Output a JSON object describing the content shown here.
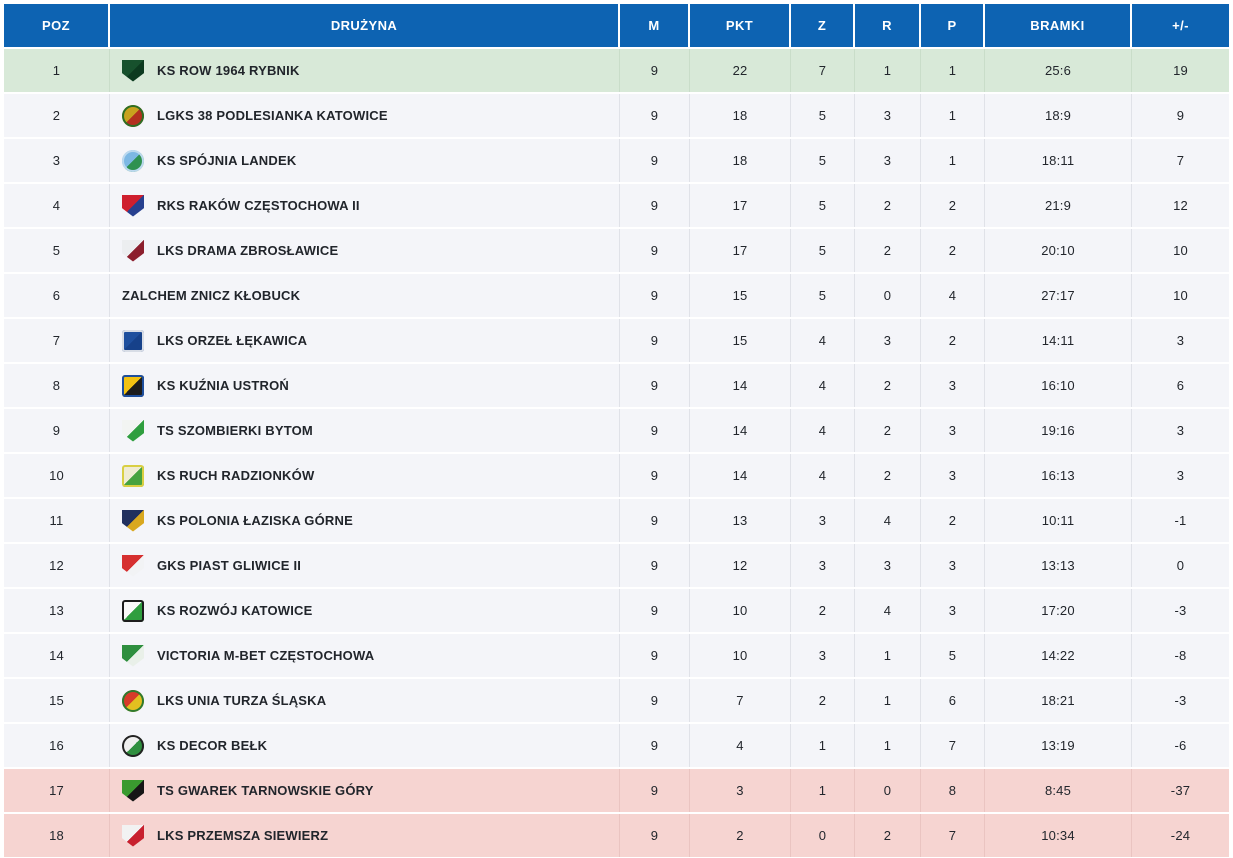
{
  "colors": {
    "header_bg": "#0d63b2",
    "header_text": "#ffffff",
    "row_bg": "#f4f5f9",
    "promotion_row_bg": "#d8e9d8",
    "relegation_row_bg": "#f6d4d1",
    "cell_text": "#22262c",
    "cell_border": "#e0e2e8"
  },
  "table": {
    "columns": [
      {
        "key": "pos",
        "label": "POZ"
      },
      {
        "key": "team",
        "label": "DRUŻYNA"
      },
      {
        "key": "m",
        "label": "M"
      },
      {
        "key": "pkt",
        "label": "PKT"
      },
      {
        "key": "z",
        "label": "Z"
      },
      {
        "key": "r",
        "label": "R"
      },
      {
        "key": "p",
        "label": "P"
      },
      {
        "key": "bramki",
        "label": "BRAMKI"
      },
      {
        "key": "diff",
        "label": "+/-"
      }
    ],
    "rows": [
      {
        "pos": "1",
        "team": "KS ROW 1964 RYBNIK",
        "m": "9",
        "pkt": "22",
        "z": "7",
        "r": "1",
        "p": "1",
        "bramki": "25:6",
        "diff": "19",
        "highlight": "promotion",
        "logo": {
          "shape": "shield",
          "c1": "#17512d",
          "c2": "#0c3a1f",
          "c3": "#0a2c17"
        }
      },
      {
        "pos": "2",
        "team": "LGKS 38 PODLESIANKA KATOWICE",
        "m": "9",
        "pkt": "18",
        "z": "5",
        "r": "3",
        "p": "1",
        "bramki": "18:9",
        "diff": "9",
        "highlight": "none",
        "logo": {
          "shape": "round",
          "c1": "#c8a21e",
          "c2": "#b3301f",
          "c3": "#2d6e24"
        }
      },
      {
        "pos": "3",
        "team": "KS SPÓJNIA LANDEK",
        "m": "9",
        "pkt": "18",
        "z": "5",
        "r": "3",
        "p": "1",
        "bramki": "18:11",
        "diff": "7",
        "highlight": "none",
        "logo": {
          "shape": "round",
          "c1": "#7db8e4",
          "c2": "#2f9150",
          "c3": "#bcd9ef"
        }
      },
      {
        "pos": "4",
        "team": "RKS RAKÓW CZĘSTOCHOWA II",
        "m": "9",
        "pkt": "17",
        "z": "5",
        "r": "2",
        "p": "2",
        "bramki": "21:9",
        "diff": "12",
        "highlight": "none",
        "logo": {
          "shape": "shield",
          "c1": "#cf1f2e",
          "c2": "#27408f",
          "c3": "#1c2f6b"
        }
      },
      {
        "pos": "5",
        "team": "LKS DRAMA ZBROSŁAWICE",
        "m": "9",
        "pkt": "17",
        "z": "5",
        "r": "2",
        "p": "2",
        "bramki": "20:10",
        "diff": "10",
        "highlight": "none",
        "logo": {
          "shape": "shield",
          "c1": "#eceef0",
          "c2": "#8c1f2e",
          "c3": "#30356b"
        }
      },
      {
        "pos": "6",
        "team": "ZALCHEM ZNICZ KŁOBUCK",
        "m": "9",
        "pkt": "15",
        "z": "5",
        "r": "0",
        "p": "4",
        "bramki": "27:17",
        "diff": "10",
        "highlight": "none",
        "logo": {
          "shape": "none"
        }
      },
      {
        "pos": "7",
        "team": "LKS ORZEŁ ŁĘKAWICA",
        "m": "9",
        "pkt": "15",
        "z": "4",
        "r": "3",
        "p": "2",
        "bramki": "14:11",
        "diff": "3",
        "highlight": "none",
        "logo": {
          "shape": "square",
          "c1": "#1e4f9e",
          "c2": "#16418a",
          "c3": "#d8dde6"
        }
      },
      {
        "pos": "8",
        "team": "KS KUŹNIA USTROŃ",
        "m": "9",
        "pkt": "14",
        "z": "4",
        "r": "2",
        "p": "3",
        "bramki": "16:10",
        "diff": "6",
        "highlight": "none",
        "logo": {
          "shape": "square",
          "c1": "#f3c212",
          "c2": "#1d1d1d",
          "c3": "#1e4f9e"
        }
      },
      {
        "pos": "9",
        "team": "TS SZOMBIERKI BYTOM",
        "m": "9",
        "pkt": "14",
        "z": "4",
        "r": "2",
        "p": "3",
        "bramki": "19:16",
        "diff": "3",
        "highlight": "none",
        "logo": {
          "shape": "shield",
          "c1": "#f2f4f2",
          "c2": "#2f9e3f",
          "c3": "#27813a"
        }
      },
      {
        "pos": "10",
        "team": "KS RUCH RADZIONKÓW",
        "m": "9",
        "pkt": "14",
        "z": "4",
        "r": "2",
        "p": "3",
        "bramki": "16:13",
        "diff": "3",
        "highlight": "none",
        "logo": {
          "shape": "square",
          "c1": "#f0ecd2",
          "c2": "#47a23f",
          "c3": "#d9cf43"
        }
      },
      {
        "pos": "11",
        "team": "KS POLONIA ŁAZISKA GÓRNE",
        "m": "9",
        "pkt": "13",
        "z": "3",
        "r": "4",
        "p": "2",
        "bramki": "10:11",
        "diff": "-1",
        "highlight": "none",
        "logo": {
          "shape": "shield",
          "c1": "#21305e",
          "c2": "#d9a81f",
          "c3": "#3a2b1a"
        }
      },
      {
        "pos": "12",
        "team": "GKS PIAST GLIWICE II",
        "m": "9",
        "pkt": "12",
        "z": "3",
        "r": "3",
        "p": "3",
        "bramki": "13:13",
        "diff": "0",
        "highlight": "none",
        "logo": {
          "shape": "shield",
          "c1": "#d63030",
          "c2": "#f2f3f5",
          "c3": "#27408f"
        }
      },
      {
        "pos": "13",
        "team": "KS ROZWÓJ KATOWICE",
        "m": "9",
        "pkt": "10",
        "z": "2",
        "r": "4",
        "p": "3",
        "bramki": "17:20",
        "diff": "-3",
        "highlight": "none",
        "logo": {
          "shape": "square",
          "c1": "#fafafa",
          "c2": "#2f9e3f",
          "c3": "#1d1d1d"
        }
      },
      {
        "pos": "14",
        "team": "VICTORIA M-BET CZĘSTOCHOWA",
        "m": "9",
        "pkt": "10",
        "z": "3",
        "r": "1",
        "p": "5",
        "bramki": "14:22",
        "diff": "-8",
        "highlight": "none",
        "logo": {
          "shape": "shield",
          "c1": "#2f8f3f",
          "c2": "#e9f0e9",
          "c3": "#27703a"
        }
      },
      {
        "pos": "15",
        "team": "LKS UNIA TURZA ŚLĄSKA",
        "m": "9",
        "pkt": "7",
        "z": "2",
        "r": "1",
        "p": "6",
        "bramki": "18:21",
        "diff": "-3",
        "highlight": "none",
        "logo": {
          "shape": "round",
          "c1": "#d83a2a",
          "c2": "#e3c020",
          "c3": "#2f7a2f"
        }
      },
      {
        "pos": "16",
        "team": "KS DECOR BEŁK",
        "m": "9",
        "pkt": "4",
        "z": "1",
        "r": "1",
        "p": "7",
        "bramki": "13:19",
        "diff": "-6",
        "highlight": "none",
        "logo": {
          "shape": "round",
          "c1": "#efefef",
          "c2": "#2f8f3f",
          "c3": "#222222"
        }
      },
      {
        "pos": "17",
        "team": "TS GWAREK TARNOWSKIE GÓRY",
        "m": "9",
        "pkt": "3",
        "z": "1",
        "r": "0",
        "p": "8",
        "bramki": "8:45",
        "diff": "-37",
        "highlight": "relegation",
        "logo": {
          "shape": "shield",
          "c1": "#3a9a2f",
          "c2": "#161616",
          "c3": "#caa61c"
        }
      },
      {
        "pos": "18",
        "team": "LKS PRZEMSZA SIEWIERZ",
        "m": "9",
        "pkt": "2",
        "z": "0",
        "r": "2",
        "p": "7",
        "bramki": "10:34",
        "diff": "-24",
        "highlight": "relegation",
        "logo": {
          "shape": "shield",
          "c1": "#f2f2f2",
          "c2": "#c8202e",
          "c3": "#2f7a2f"
        }
      }
    ]
  }
}
